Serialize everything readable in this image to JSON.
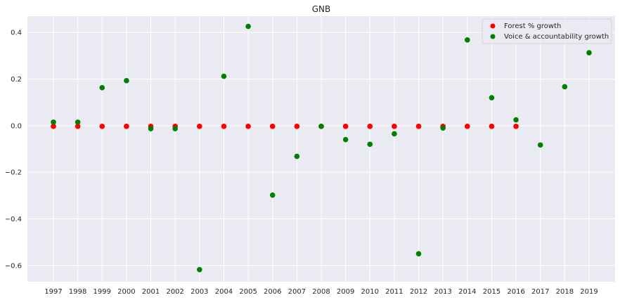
{
  "chart_data": {
    "type": "scatter",
    "title": "GNB",
    "xlabel": "",
    "ylabel": "",
    "categories": [
      "1997",
      "1998",
      "1999",
      "2000",
      "2001",
      "2002",
      "2003",
      "2004",
      "2005",
      "2006",
      "2007",
      "2008",
      "2009",
      "2010",
      "2011",
      "2012",
      "2013",
      "2014",
      "2015",
      "2016",
      "2017",
      "2018",
      "2019"
    ],
    "ylim": [
      -0.67,
      0.47
    ],
    "yticks": [
      -0.6,
      -0.4,
      -0.2,
      0.0,
      0.2,
      0.4
    ],
    "ytick_labels": [
      "−0.6",
      "−0.4",
      "−0.2",
      "0.0",
      "0.2",
      "0.4"
    ],
    "grid": true,
    "legend_position": "top-right",
    "series": [
      {
        "name": "Forest % growth",
        "color": "#ff0000",
        "x": [
          "1997",
          "1998",
          "1999",
          "2000",
          "2001",
          "2002",
          "2003",
          "2004",
          "2005",
          "2006",
          "2007",
          "2008",
          "2009",
          "2010",
          "2011",
          "2012",
          "2013",
          "2014",
          "2015",
          "2016"
        ],
        "values": [
          -0.003,
          -0.003,
          -0.003,
          -0.003,
          -0.003,
          -0.003,
          -0.003,
          -0.003,
          -0.003,
          -0.003,
          -0.003,
          -0.003,
          -0.003,
          -0.003,
          -0.003,
          -0.003,
          -0.003,
          -0.003,
          -0.003,
          -0.003
        ]
      },
      {
        "name": "Voice & accountability growth",
        "color": "#008000",
        "x": [
          "1997",
          "1998",
          "1999",
          "2000",
          "2001",
          "2002",
          "2003",
          "2004",
          "2005",
          "2006",
          "2007",
          "2008",
          "2009",
          "2010",
          "2011",
          "2012",
          "2013",
          "2014",
          "2015",
          "2016",
          "2017",
          "2018",
          "2019"
        ],
        "values": [
          0.015,
          0.015,
          0.163,
          0.193,
          -0.013,
          -0.013,
          -0.618,
          0.212,
          0.426,
          -0.298,
          -0.132,
          -0.003,
          -0.06,
          -0.08,
          -0.035,
          -0.55,
          -0.01,
          0.368,
          0.12,
          0.025,
          -0.083,
          0.167,
          0.313
        ]
      }
    ]
  }
}
